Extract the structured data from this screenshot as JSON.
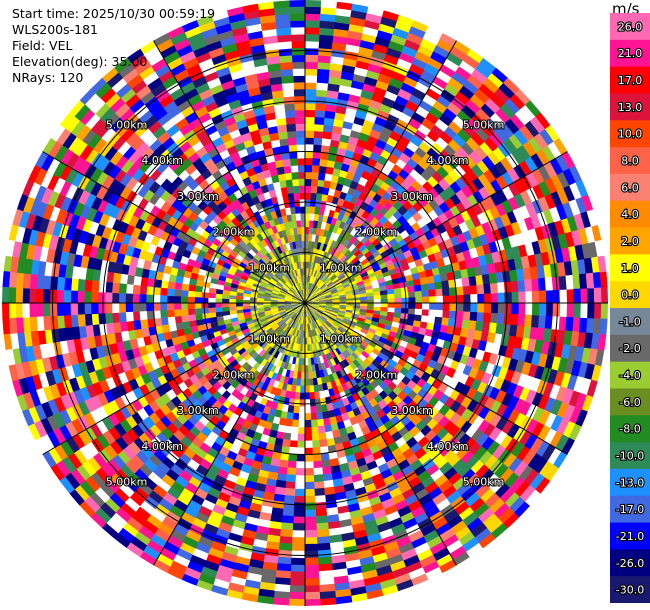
{
  "meta": {
    "start_time": "Start time: 2025/10/30 00:59:19",
    "station": "WLS200s-181",
    "field": "Field: VEL",
    "elevation": "Elevation(deg): 35.00",
    "nrays": "NRays: 120"
  },
  "chart_data": {
    "type": "heatmap",
    "projection": "polar-ppi",
    "field": "VEL",
    "units": "m/s",
    "n_rays": 120,
    "elevation_deg": 35.0,
    "range_rings_km": [
      1.0,
      2.0,
      3.0,
      4.0,
      5.0
    ],
    "ring_labels": [
      "1.00km",
      "2.00km",
      "3.00km",
      "4.00km",
      "5.00km"
    ],
    "max_range_km": 6.0,
    "colorbar": {
      "label": "m/s",
      "ticks": [
        "26.0",
        "21.0",
        "17.0",
        "13.0",
        "10.0",
        "8.0",
        "6.0",
        "4.0",
        "2.0",
        "1.0",
        "0.0",
        "-1.0",
        "-2.0",
        "-4.0",
        "-6.0",
        "-8.0",
        "-10.0",
        "-13.0",
        "-17.0",
        "-21.0",
        "-26.0",
        "-30.0"
      ],
      "colors": [
        "#ff69b4",
        "#ff1493",
        "#ff0000",
        "#dc143c",
        "#ff4500",
        "#ff6347",
        "#fa8072",
        "#ff8c00",
        "#ffa500",
        "#ffff00",
        "#ffd700",
        "#778899",
        "#696969",
        "#9acd32",
        "#6b8e23",
        "#228b22",
        "#2e8b57",
        "#1e90ff",
        "#4169e1",
        "#0000ff",
        "#000080",
        "#191970"
      ]
    }
  }
}
